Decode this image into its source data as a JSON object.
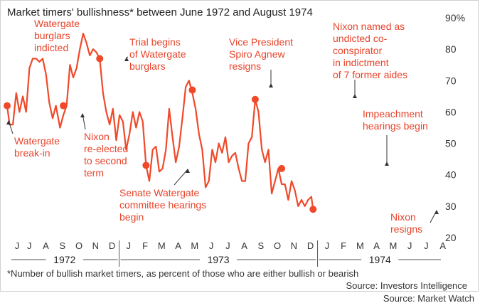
{
  "source_credit": "Source: Market Watch",
  "chart_data": {
    "type": "line",
    "title": "Market timers' bullishness* between June 1972 and August 1974",
    "footnote": "*Number of bullish market timers, as percent of those who are either bullish or bearish",
    "source": "Source: Investors Intelligence",
    "y_unit": "%",
    "ylim": [
      20,
      90
    ],
    "y_ticks": [
      20,
      30,
      40,
      50,
      60,
      70,
      80,
      90
    ],
    "x_months": [
      "J",
      "J",
      "A",
      "S",
      "O",
      "N",
      "D",
      "J",
      "F",
      "M",
      "A",
      "M",
      "J",
      "J",
      "A",
      "S",
      "O",
      "N",
      "D",
      "J",
      "F",
      "M",
      "A",
      "M",
      "J",
      "J",
      "A"
    ],
    "years": [
      {
        "label": "1972",
        "start": 0,
        "end": 6
      },
      {
        "label": "1973",
        "start": 7,
        "end": 18
      },
      {
        "label": "1974",
        "start": 19,
        "end": 26
      }
    ],
    "grid": false,
    "series": [
      {
        "color": "#f0492a",
        "values": [
          [
            0,
            62
          ],
          [
            0.15,
            56
          ],
          [
            0.35,
            56
          ],
          [
            0.55,
            66
          ],
          [
            0.75,
            60
          ],
          [
            0.95,
            65
          ],
          [
            1.15,
            60
          ],
          [
            1.35,
            74
          ],
          [
            1.55,
            77
          ],
          [
            1.75,
            77
          ],
          [
            1.95,
            76
          ],
          [
            2.15,
            77
          ],
          [
            2.35,
            72
          ],
          [
            2.55,
            63
          ],
          [
            2.75,
            58
          ],
          [
            2.95,
            62
          ],
          [
            3.2,
            55
          ],
          [
            3.4,
            59
          ],
          [
            3.6,
            62
          ],
          [
            3.8,
            75
          ],
          [
            4.0,
            71
          ],
          [
            4.2,
            74
          ],
          [
            4.4,
            80
          ],
          [
            4.6,
            85
          ],
          [
            4.8,
            82
          ],
          [
            5.0,
            78
          ],
          [
            5.2,
            80
          ],
          [
            5.4,
            79
          ],
          [
            5.6,
            77
          ],
          [
            5.8,
            66
          ],
          [
            6.0,
            60
          ],
          [
            6.2,
            56
          ],
          [
            6.4,
            61
          ],
          [
            6.6,
            51
          ],
          [
            6.8,
            59
          ],
          [
            7.0,
            57
          ],
          [
            7.2,
            48
          ],
          [
            7.4,
            53
          ],
          [
            7.6,
            60
          ],
          [
            7.8,
            55
          ],
          [
            8.0,
            60
          ],
          [
            8.2,
            57
          ],
          [
            8.4,
            43
          ],
          [
            8.6,
            38
          ],
          [
            8.8,
            48
          ],
          [
            9.0,
            49
          ],
          [
            9.2,
            41
          ],
          [
            9.4,
            42
          ],
          [
            9.6,
            48
          ],
          [
            9.8,
            61
          ],
          [
            10.0,
            52
          ],
          [
            10.2,
            44
          ],
          [
            10.4,
            49
          ],
          [
            10.6,
            58
          ],
          [
            10.8,
            68
          ],
          [
            11.0,
            70
          ],
          [
            11.2,
            66
          ],
          [
            11.4,
            61
          ],
          [
            11.6,
            53
          ],
          [
            11.8,
            48
          ],
          [
            12.0,
            36
          ],
          [
            12.2,
            38
          ],
          [
            12.4,
            48
          ],
          [
            12.6,
            44
          ],
          [
            12.8,
            50
          ],
          [
            13.0,
            47
          ],
          [
            13.2,
            52
          ],
          [
            13.4,
            44
          ],
          [
            13.6,
            46
          ],
          [
            13.8,
            47
          ],
          [
            14.0,
            42
          ],
          [
            14.2,
            38
          ],
          [
            14.4,
            38
          ],
          [
            14.6,
            50
          ],
          [
            14.8,
            52
          ],
          [
            15.0,
            64
          ],
          [
            15.2,
            60
          ],
          [
            15.4,
            48
          ],
          [
            15.6,
            44
          ],
          [
            15.8,
            48
          ],
          [
            16.0,
            34
          ],
          [
            16.2,
            38
          ],
          [
            16.4,
            42
          ],
          [
            16.6,
            37
          ],
          [
            16.8,
            37
          ],
          [
            17.0,
            32
          ],
          [
            17.2,
            38
          ],
          [
            17.4,
            35
          ],
          [
            17.6,
            30
          ],
          [
            17.8,
            32
          ],
          [
            18.0,
            30
          ],
          [
            18.2,
            32
          ],
          [
            18.4,
            33
          ],
          [
            18.5,
            29
          ]
        ]
      }
    ],
    "annotations": [
      {
        "lines": [
          "Watergate",
          "break-in"
        ],
        "x": 0,
        "y": 62,
        "dot": true
      },
      {
        "lines": [
          "Watergate",
          "burglars",
          "indicted"
        ],
        "x": 1.9,
        "y": 77,
        "dot": false
      },
      {
        "lines": [
          "Nixon",
          "re-elected",
          "to second",
          "term"
        ],
        "x": 3.4,
        "y": 62,
        "dot": true
      },
      {
        "lines": [
          "Trial begins",
          "of Watergate",
          "burglars"
        ],
        "x": 5.6,
        "y": 77,
        "dot": true
      },
      {
        "lines": [
          "Senate Watergate",
          "committee hearings",
          "begin"
        ],
        "x": 8.4,
        "y": 43,
        "dot": true
      },
      {
        "lines": [
          "Vice President",
          "Spiro Agnew",
          "resigns"
        ],
        "x": 11.2,
        "y": 67,
        "dot": true
      },
      {
        "lines": [
          "Nixon named as",
          "undicted co-",
          "conspirator",
          "in indictment",
          "of 7 former aides"
        ],
        "x": 15.0,
        "y": 64,
        "dot": true
      },
      {
        "lines": [
          "Impeachment",
          "hearings begin"
        ],
        "x": 16.6,
        "y": 42,
        "dot": true
      },
      {
        "lines": [
          "Nixon",
          "resigns"
        ],
        "x": 18.5,
        "y": 29,
        "dot": true
      }
    ]
  }
}
